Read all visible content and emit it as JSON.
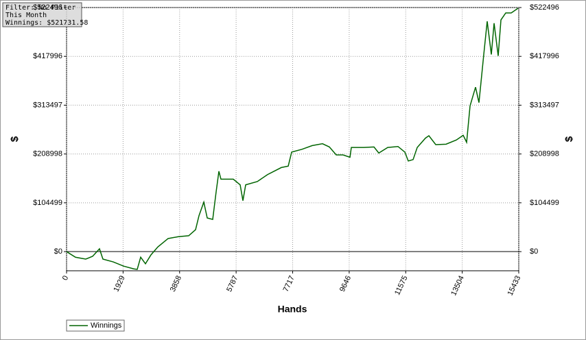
{
  "chart_data": {
    "type": "line",
    "annotations": [
      "Filter: No Filter",
      "This Month",
      "Winnings: $521731.58"
    ],
    "xlabel": "Hands",
    "ylabel": "$",
    "y2label": "$",
    "x": [
      0,
      304,
      656,
      890,
      1124,
      1241,
      1592,
      1944,
      2295,
      2412,
      2529,
      2693,
      2880,
      3114,
      3466,
      3817,
      4168,
      4403,
      4520,
      4684,
      4801,
      4988,
      5105,
      5199,
      5269,
      5691,
      5925,
      6019,
      6113,
      6511,
      6862,
      7330,
      7565,
      7682,
      8033,
      8384,
      8735,
      8970,
      9204,
      9438,
      9673,
      9719,
      10141,
      10492,
      10656,
      10961,
      11312,
      11546,
      11663,
      11827,
      11968,
      12249,
      12366,
      12600,
      12951,
      13303,
      13537,
      13654,
      13771,
      13958,
      14075,
      14239,
      14356,
      14497,
      14591,
      14731,
      14825,
      14989,
      15176,
      15410
    ],
    "series": [
      {
        "name": "Winnings",
        "color": "#006400",
        "values": [
          0,
          -12000,
          -16000,
          -10000,
          6000,
          -16000,
          -22000,
          -31000,
          -37000,
          -38000,
          -12000,
          -26000,
          -7000,
          10000,
          28000,
          32000,
          34000,
          47000,
          77000,
          106000,
          72000,
          69000,
          128000,
          172000,
          155000,
          155000,
          143000,
          109000,
          143000,
          150000,
          165000,
          180000,
          183000,
          213000,
          219000,
          227000,
          231000,
          224000,
          207000,
          207000,
          202000,
          223000,
          223000,
          224000,
          211000,
          223000,
          225000,
          213000,
          194000,
          197000,
          223000,
          243000,
          248000,
          229000,
          230000,
          239000,
          249000,
          234000,
          312000,
          352000,
          319000,
          422000,
          493000,
          422000,
          489000,
          419000,
          496000,
          511000,
          511000,
          521000
        ]
      }
    ],
    "xlim": [
      0,
      15433
    ],
    "xticks": [
      0,
      1929,
      3858,
      5787,
      7717,
      9646,
      11575,
      13504,
      15433
    ],
    "ylim": [
      -41000,
      522496
    ],
    "yticks": [
      {
        "value": 0,
        "label": "$0"
      },
      {
        "value": 104499,
        "label": "$104499"
      },
      {
        "value": 208998,
        "label": "$208998"
      },
      {
        "value": 313497,
        "label": "$313497"
      },
      {
        "value": 417996,
        "label": "$417996"
      },
      {
        "value": 522496,
        "label": "$522496"
      }
    ],
    "y2lim": [
      -41000,
      522496
    ],
    "y2ticks": [
      {
        "value": 0,
        "label": "$0"
      },
      {
        "value": 104499,
        "label": "$104499"
      },
      {
        "value": 208998,
        "label": "$208998"
      },
      {
        "value": 313497,
        "label": "$313497"
      },
      {
        "value": 417996,
        "label": "$417996"
      },
      {
        "value": 522496,
        "label": "$522496"
      }
    ],
    "grid": true,
    "legend": "bottom-left"
  }
}
